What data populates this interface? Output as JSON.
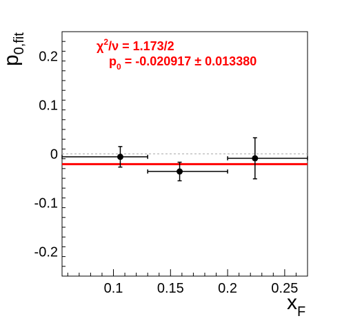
{
  "chart_data": {
    "type": "scatter",
    "xlabel": {
      "main": "x",
      "sub": "F"
    },
    "ylabel": {
      "main": "p",
      "sub": "0,fit"
    },
    "xlim": [
      0.055,
      0.27
    ],
    "ylim": [
      -0.25,
      0.25
    ],
    "x_ticks": [
      0.1,
      0.15,
      0.2,
      0.25
    ],
    "x_tick_labels": [
      "0.1",
      "0.15",
      "0.2",
      "0.25"
    ],
    "y_ticks": [
      0.2,
      0.1,
      0,
      -0.1,
      -0.2
    ],
    "y_tick_labels": [
      "0.2",
      "0.1",
      "0",
      "-0.1",
      "-0.2"
    ],
    "grid": false,
    "points": [
      {
        "x": 0.106,
        "y": -0.006,
        "x_low": 0.055,
        "x_high": 0.13,
        "y_err": 0.021
      },
      {
        "x": 0.158,
        "y": -0.036,
        "x_low": 0.13,
        "x_high": 0.2,
        "y_err": 0.019
      },
      {
        "x": 0.224,
        "y": -0.009,
        "x_low": 0.2,
        "x_high": 0.27,
        "y_err": 0.042
      }
    ],
    "reference_line": {
      "y": 0,
      "style": "dashed",
      "color": "#aaaaaa"
    },
    "fit_line": {
      "y": -0.020917,
      "color": "#ff0000"
    },
    "annotation": {
      "chi2_prefix": "χ",
      "chi2_sup": "2",
      "chi2_rest": "/ν = 1.173/2",
      "p0_prefix": "p",
      "p0_sub": "0",
      "p0_rest": " = -0.020917 ± 0.013380",
      "color": "#ff0000"
    }
  }
}
